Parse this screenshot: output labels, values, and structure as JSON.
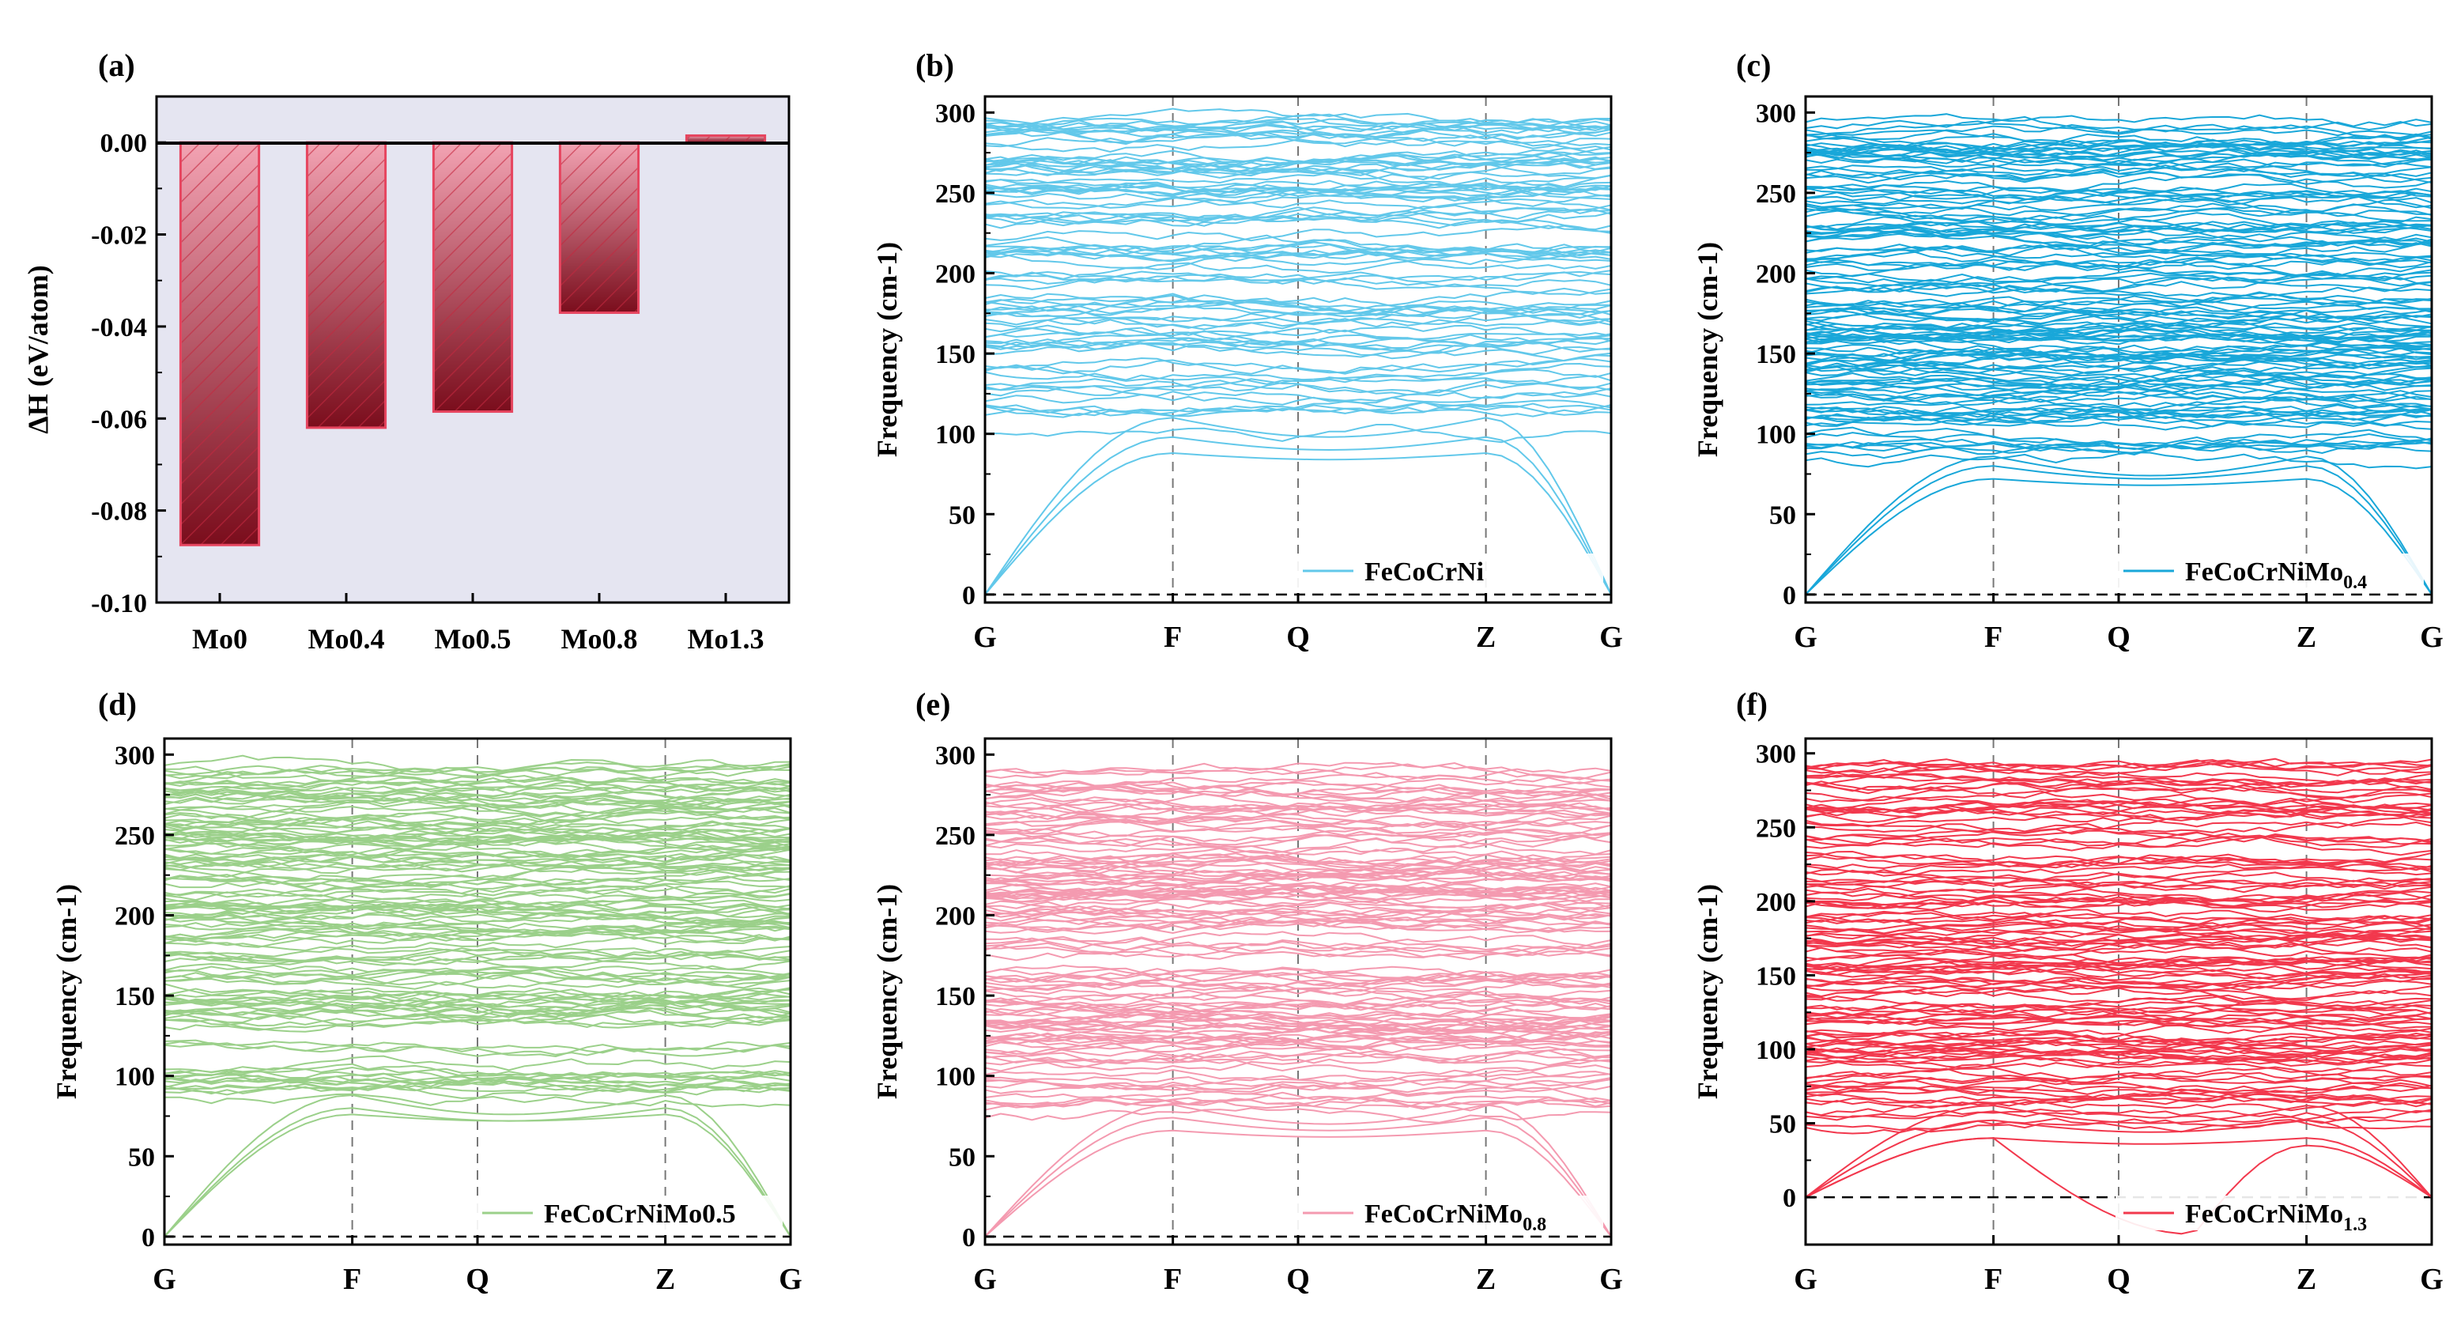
{
  "figure": {
    "panel_labels": [
      "(a)",
      "(b)",
      "(c)",
      "(d)",
      "(e)",
      "(f)"
    ]
  },
  "colors": {
    "bar_top": "#f3a3b3",
    "bar_bottom": "#7a0d1c",
    "bar_border": "#e6455f",
    "bar_hatch": "#c4283f",
    "panel_a_bg": "#e5e5f1",
    "panel_b": "#62c8ea",
    "panel_c": "#19a7d9",
    "panel_d": "#9bd08a",
    "panel_e": "#f49ab0",
    "panel_f": "#f2384d"
  },
  "chart_data": [
    {
      "id": "a",
      "type": "bar",
      "title": "(a)",
      "xlabel": "",
      "ylabel": "ΔH (eV/atom)",
      "categories": [
        "Mo0",
        "Mo0.4",
        "Mo0.5",
        "Mo0.8",
        "Mo1.3"
      ],
      "values": [
        -0.0875,
        -0.062,
        -0.0585,
        -0.037,
        0.0015
      ],
      "ylim": [
        -0.1,
        0.01
      ],
      "yticks": [
        0.0,
        -0.02,
        -0.04,
        -0.06,
        -0.08,
        -0.1
      ],
      "ytick_labels": [
        "0.00",
        "-0.02",
        "-0.04",
        "-0.06",
        "-0.08",
        "-0.10"
      ],
      "background": "lavender",
      "zero_line": true
    },
    {
      "id": "b",
      "type": "line",
      "title": "(b)",
      "xlabel": "",
      "ylabel": "Frequency (cm-1)",
      "x_ticks": [
        "G",
        "F",
        "Q",
        "Z",
        "G"
      ],
      "x_positions": [
        0,
        0.3,
        0.5,
        0.8,
        1.0
      ],
      "ylim": [
        -5,
        310
      ],
      "yticks": [
        0,
        50,
        100,
        150,
        200,
        250,
        300
      ],
      "legend": {
        "label": "FeCoCrNi",
        "sub": "",
        "position": "bottom-right"
      },
      "band_range": [
        100,
        298
      ],
      "acoustic_ends": [
        88,
        98,
        110
      ],
      "min_band_value": 0
    },
    {
      "id": "c",
      "type": "line",
      "title": "(c)",
      "xlabel": "",
      "ylabel": "Frequency (cm-1)",
      "x_ticks": [
        "G",
        "F",
        "Q",
        "Z",
        "G"
      ],
      "x_positions": [
        0,
        0.3,
        0.5,
        0.8,
        1.0
      ],
      "ylim": [
        -5,
        310
      ],
      "yticks": [
        0,
        50,
        100,
        150,
        200,
        250,
        300
      ],
      "legend": {
        "label": "FeCoCrNiMo",
        "sub": "0.4",
        "position": "bottom-right"
      },
      "band_range": [
        80,
        295
      ],
      "acoustic_ends": [
        72,
        80,
        86
      ],
      "min_band_value": 0
    },
    {
      "id": "d",
      "type": "line",
      "title": "(d)",
      "xlabel": "",
      "ylabel": "Frequency (cm-1)",
      "x_ticks": [
        "G",
        "F",
        "Q",
        "Z",
        "G"
      ],
      "x_positions": [
        0,
        0.3,
        0.5,
        0.8,
        1.0
      ],
      "ylim": [
        -5,
        310
      ],
      "yticks": [
        0,
        50,
        100,
        150,
        200,
        250,
        300
      ],
      "legend": {
        "label": "FeCoCrNiMo0.5",
        "sub": "",
        "position": "bottom-right"
      },
      "band_range": [
        82,
        294
      ],
      "acoustic_ends": [
        76,
        80,
        88
      ],
      "min_band_value": 0
    },
    {
      "id": "e",
      "type": "line",
      "title": "(e)",
      "xlabel": "",
      "ylabel": "Frequency (cm-1)",
      "x_ticks": [
        "G",
        "F",
        "Q",
        "Z",
        "G"
      ],
      "x_positions": [
        0,
        0.3,
        0.5,
        0.8,
        1.0
      ],
      "ylim": [
        -5,
        310
      ],
      "yticks": [
        0,
        50,
        100,
        150,
        200,
        250,
        300
      ],
      "legend": {
        "label": "FeCoCrNiMo",
        "sub": "0.8",
        "position": "bottom-right"
      },
      "band_range": [
        72,
        292
      ],
      "acoustic_ends": [
        66,
        74,
        82
      ],
      "min_band_value": 0
    },
    {
      "id": "f",
      "type": "line",
      "title": "(f)",
      "xlabel": "",
      "ylabel": "Frequency (cm-1)",
      "x_ticks": [
        "G",
        "F",
        "Q",
        "Z",
        "G"
      ],
      "x_positions": [
        0,
        0.3,
        0.5,
        0.8,
        1.0
      ],
      "ylim": [
        -32,
        310
      ],
      "yticks": [
        0,
        50,
        100,
        150,
        200,
        250,
        300
      ],
      "legend": {
        "label": "FeCoCrNiMo",
        "sub": "1.3",
        "position": "bottom-right"
      },
      "band_range": [
        48,
        292
      ],
      "acoustic_ends": [
        40,
        52,
        62
      ],
      "min_band_value": -25
    }
  ]
}
